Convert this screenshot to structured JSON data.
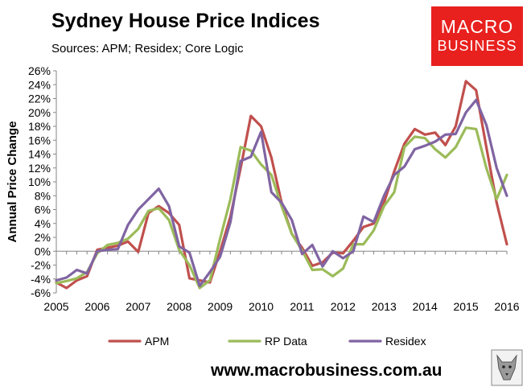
{
  "header": {
    "title": "Sydney House Price Indices",
    "subtitle": "Sources: APM; Residex; Core Logic"
  },
  "logo": {
    "line1": "MACRO",
    "line2": "BUSINESS",
    "color": "#e8211e"
  },
  "footer": {
    "website": "www.macrobusiness.com.au"
  },
  "chart_data": {
    "type": "line",
    "title": "Sydney House Price Indices",
    "xlabel": "",
    "ylabel": "Annual Price Change",
    "xlim": [
      2005,
      2016
    ],
    "ylim": [
      -6,
      26
    ],
    "y_ticks": [
      -6,
      -4,
      -2,
      0,
      2,
      4,
      6,
      8,
      10,
      12,
      14,
      16,
      18,
      20,
      22,
      24,
      26
    ],
    "y_tick_labels": [
      "-6%",
      "-4%",
      "-2%",
      "0%",
      "2%",
      "4%",
      "6%",
      "8%",
      "10%",
      "12%",
      "14%",
      "16%",
      "18%",
      "20%",
      "22%",
      "24%",
      "26%"
    ],
    "x_ticks": [
      2005,
      2006,
      2007,
      2008,
      2009,
      2010,
      2011,
      2012,
      2013,
      2014,
      2015,
      2016
    ],
    "x_tick_labels": [
      "2005",
      "2006",
      "2007",
      "2008",
      "2009",
      "2010",
      "2011",
      "2012",
      "2013",
      "2014",
      "2015",
      "2016"
    ],
    "grid": false,
    "legend_position": "bottom",
    "series": [
      {
        "name": "APM",
        "color": "#c0504d",
        "x": [
          2005.0,
          2005.25,
          2005.5,
          2005.75,
          2006.0,
          2006.25,
          2006.5,
          2006.75,
          2007.0,
          2007.25,
          2007.5,
          2007.75,
          2008.0,
          2008.25,
          2008.5,
          2008.75,
          2009.0,
          2009.25,
          2009.5,
          2009.75,
          2010.0,
          2010.25,
          2010.5,
          2010.75,
          2011.0,
          2011.25,
          2011.5,
          2011.75,
          2012.0,
          2012.25,
          2012.5,
          2012.75,
          2013.0,
          2013.25,
          2013.5,
          2013.75,
          2014.0,
          2014.25,
          2014.5,
          2014.75,
          2015.0,
          2015.25,
          2015.5,
          2015.75,
          2016.0
        ],
        "values": [
          -4.5,
          -5.3,
          -4.2,
          -3.6,
          0.2,
          0.5,
          0.8,
          1.4,
          -0.1,
          5.5,
          6.5,
          5.5,
          3.8,
          -3.9,
          -4.2,
          -4.5,
          0.0,
          5.0,
          12.0,
          19.5,
          18.0,
          13.5,
          7.0,
          2.5,
          0.5,
          -2.1,
          -1.6,
          -0.2,
          -0.3,
          1.5,
          3.5,
          4.0,
          7.0,
          11.5,
          15.5,
          17.6,
          16.8,
          17.1,
          15.3,
          18.0,
          24.5,
          23.2,
          15.0,
          7.0,
          1.0
        ]
      },
      {
        "name": "RP Data",
        "color": "#9bbb59",
        "x": [
          2005.0,
          2005.25,
          2005.5,
          2005.75,
          2006.0,
          2006.25,
          2006.5,
          2006.75,
          2007.0,
          2007.25,
          2007.5,
          2007.75,
          2008.0,
          2008.25,
          2008.5,
          2008.75,
          2009.0,
          2009.25,
          2009.5,
          2009.75,
          2010.0,
          2010.25,
          2010.5,
          2010.75,
          2011.0,
          2011.25,
          2011.5,
          2011.75,
          2012.0,
          2012.25,
          2012.5,
          2012.75,
          2013.0,
          2013.25,
          2013.5,
          2013.75,
          2014.0,
          2014.25,
          2014.5,
          2014.75,
          2015.0,
          2015.25,
          2015.5,
          2015.75,
          2016.0
        ],
        "values": [
          -4.6,
          -4.3,
          -3.9,
          -3.0,
          -0.3,
          0.9,
          1.2,
          1.8,
          3.2,
          5.8,
          6.2,
          4.5,
          0.2,
          -2.0,
          -5.3,
          -4.2,
          1.8,
          7.5,
          15.0,
          14.5,
          12.5,
          11.0,
          6.5,
          2.5,
          0.1,
          -2.7,
          -2.6,
          -3.6,
          -2.5,
          1.0,
          1.0,
          3.0,
          6.5,
          8.5,
          15.0,
          16.5,
          16.3,
          14.7,
          13.5,
          15.0,
          17.8,
          17.6,
          12.0,
          7.5,
          11.0
        ]
      },
      {
        "name": "Residex",
        "color": "#8064a2",
        "x": [
          2005.0,
          2005.25,
          2005.5,
          2005.75,
          2006.0,
          2006.25,
          2006.5,
          2006.75,
          2007.0,
          2007.25,
          2007.5,
          2007.75,
          2008.0,
          2008.25,
          2008.5,
          2008.75,
          2009.0,
          2009.25,
          2009.5,
          2009.75,
          2010.0,
          2010.25,
          2010.5,
          2010.75,
          2011.0,
          2011.25,
          2011.5,
          2011.75,
          2012.0,
          2012.25,
          2012.5,
          2012.75,
          2013.0,
          2013.25,
          2013.5,
          2013.75,
          2014.0,
          2014.25,
          2014.5,
          2014.75,
          2015.0,
          2015.25,
          2015.5,
          2015.75,
          2016.0
        ],
        "values": [
          -4.2,
          -3.8,
          -2.7,
          -3.2,
          0.0,
          0.2,
          0.3,
          3.8,
          6.0,
          7.5,
          9.0,
          6.5,
          0.7,
          -0.2,
          -5.0,
          -3.0,
          -0.8,
          4.2,
          13.0,
          13.6,
          17.2,
          8.5,
          7.0,
          4.5,
          -0.4,
          0.9,
          -2.2,
          0.0,
          -1.0,
          0.0,
          5.0,
          4.2,
          8.0,
          11.0,
          12.2,
          14.7,
          15.2,
          15.8,
          16.8,
          16.9,
          20.0,
          21.8,
          18.2,
          12.0,
          8.0
        ]
      }
    ]
  }
}
